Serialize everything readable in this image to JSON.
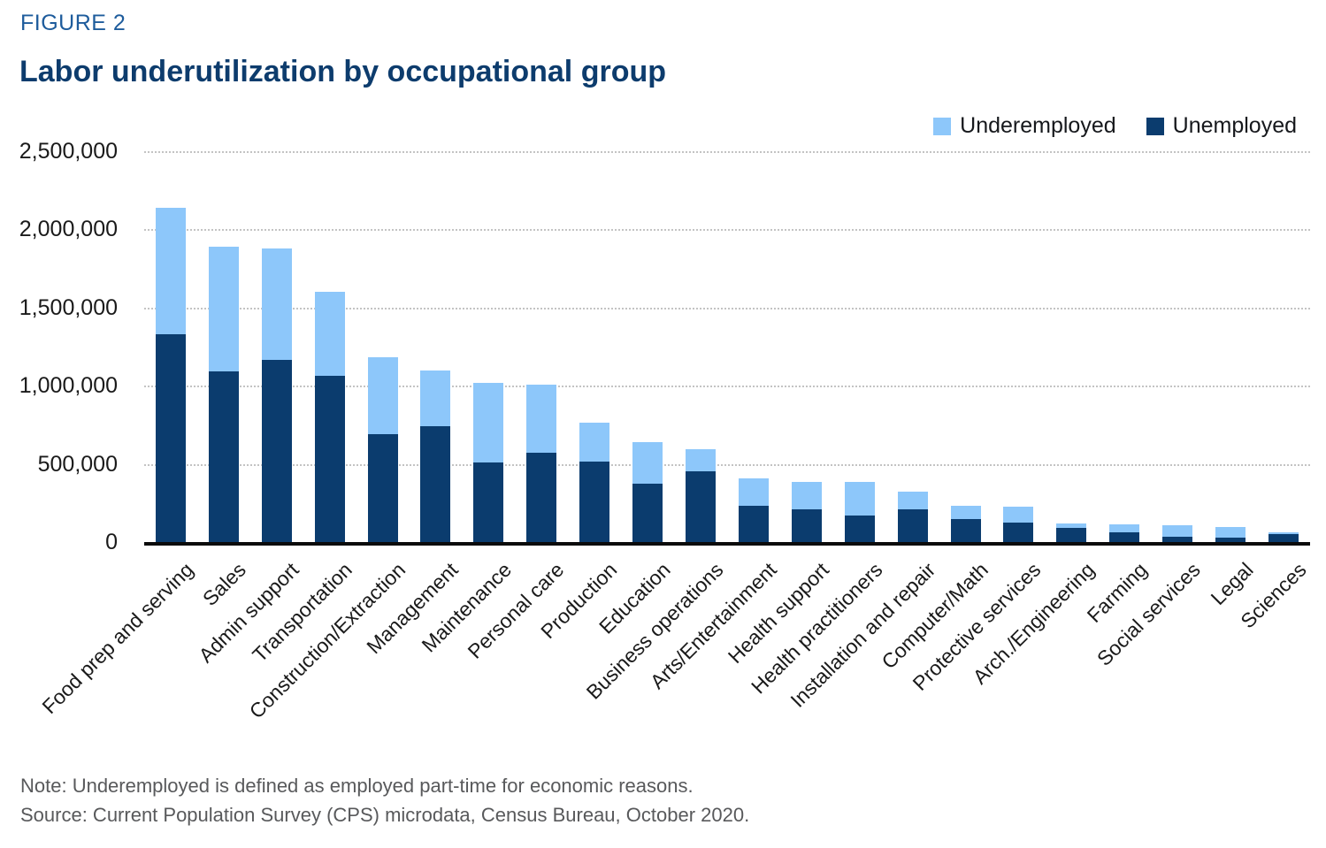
{
  "figure_label": "FIGURE 2",
  "title": "Labor underutilization by occupational group",
  "legend": [
    {
      "label": "Underemployed",
      "color": "#8DC7FA"
    },
    {
      "label": "Unemployed",
      "color": "#0B3C6E"
    }
  ],
  "note": "Note: Underemployed is defined as employed part-time for economic reasons.",
  "source": "Source: Current Population Survey (CPS) microdata, Census Bureau, October 2020.",
  "colors": {
    "figure_label": "#1E5C9C",
    "title": "#0D3C6D",
    "underemployed": "#8DC7FA",
    "unemployed": "#0B3C6E",
    "gridline": "#c3c3c3",
    "axis": "#0b0b0b",
    "footnote_text": "#58595B"
  },
  "chart_data": {
    "type": "bar",
    "stacked": true,
    "title": "Labor underutilization by occupational group",
    "categories": [
      "Food prep and serving",
      "Sales",
      "Admin support",
      "Transportation",
      "Construction/Extraction",
      "Management",
      "Maintenance",
      "Personal care",
      "Production",
      "Education",
      "Business operations",
      "Arts/Entertainment",
      "Health support",
      "Health practitioners",
      "Installation and repair",
      "Computer/Math",
      "Protective services",
      "Arch./Engineering",
      "Farming",
      "Social services",
      "Legal",
      "Sciences"
    ],
    "series": [
      {
        "name": "Unemployed",
        "color": "#0B3C6E",
        "values": [
          1330000,
          1090000,
          1165000,
          1065000,
          690000,
          740000,
          510000,
          570000,
          515000,
          375000,
          450000,
          230000,
          210000,
          170000,
          210000,
          145000,
          125000,
          90000,
          60000,
          35000,
          30000,
          50000
        ]
      },
      {
        "name": "Underemployed",
        "color": "#8DC7FA",
        "values": [
          810000,
          800000,
          715000,
          535000,
          490000,
          360000,
          510000,
          435000,
          250000,
          265000,
          145000,
          180000,
          175000,
          215000,
          115000,
          90000,
          100000,
          30000,
          55000,
          75000,
          65000,
          15000
        ]
      }
    ],
    "xlabel": "",
    "ylabel": "",
    "ylim": [
      0,
      2500000
    ],
    "yticks": [
      0,
      500000,
      1000000,
      1500000,
      2000000,
      2500000
    ],
    "ytick_labels": [
      "0",
      "500,000",
      "1,000,000",
      "1,500,000",
      "2,000,000",
      "2,500,000"
    ],
    "grid": "horizontal-dotted",
    "legend_position": "top-right",
    "x_tick_rotation": -45
  }
}
